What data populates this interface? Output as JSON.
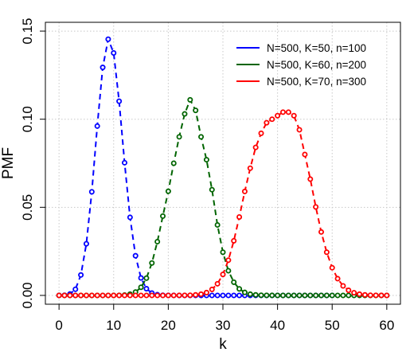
{
  "chart_data": {
    "type": "line",
    "xlabel": "k",
    "ylabel": "PMF",
    "xlim": [
      -2.5,
      62.5
    ],
    "ylim": [
      -0.005,
      0.155
    ],
    "x_ticks": [
      0,
      10,
      20,
      30,
      40,
      50,
      60
    ],
    "y_ticks": [
      0.0,
      0.05,
      0.1,
      0.15
    ],
    "x_tick_labels": [
      "0",
      "10",
      "20",
      "30",
      "40",
      "50",
      "60"
    ],
    "y_tick_labels": [
      "0.00",
      "0.05",
      "0.10",
      "0.15"
    ],
    "grid": true,
    "legend_position": "top-right",
    "markers": "open-circles",
    "line_style": "dashed",
    "series": [
      {
        "name": "N=500, K=50, n=100",
        "color": "#0000FF",
        "x": [
          0,
          1,
          2,
          3,
          4,
          5,
          6,
          7,
          8,
          9,
          10,
          11,
          12,
          13,
          14,
          15,
          16,
          17,
          18,
          19,
          20,
          21,
          22,
          23,
          24,
          25,
          26,
          27,
          28,
          29,
          30,
          31,
          32,
          33,
          34,
          35,
          36,
          37,
          38,
          39,
          40,
          41,
          42,
          43,
          44,
          45,
          46,
          47,
          48,
          49,
          50
        ],
        "values": [
          1e-05,
          0.0001,
          0.0008,
          0.0035,
          0.0116,
          0.0293,
          0.0588,
          0.0961,
          0.1294,
          0.1454,
          0.1376,
          0.1102,
          0.0753,
          0.0443,
          0.0225,
          0.0099,
          0.0038,
          0.0013,
          0.0004,
          0.0001,
          2e-05,
          4e-06,
          0,
          0,
          0,
          0,
          0,
          0,
          0,
          0,
          0,
          0,
          0,
          0,
          0,
          0,
          0,
          0,
          0,
          0,
          0,
          0,
          0,
          0,
          0,
          0,
          0,
          0,
          0,
          0,
          0
        ]
      },
      {
        "name": "N=500, K=60, n=200",
        "color": "#006400",
        "x": [
          0,
          1,
          2,
          3,
          4,
          5,
          6,
          7,
          8,
          9,
          10,
          11,
          12,
          13,
          14,
          15,
          16,
          17,
          18,
          19,
          20,
          21,
          22,
          23,
          24,
          25,
          26,
          27,
          28,
          29,
          30,
          31,
          32,
          33,
          34,
          35,
          36,
          37,
          38,
          39,
          40,
          41,
          42,
          43,
          44,
          45,
          46,
          47,
          48,
          49,
          50,
          51,
          52,
          53,
          54,
          55,
          56,
          57,
          58,
          59,
          60
        ],
        "values": [
          0,
          0,
          0,
          0,
          0,
          0,
          0,
          0,
          0,
          0,
          1e-05,
          5e-05,
          0.0002,
          0.0007,
          0.0019,
          0.0046,
          0.0098,
          0.0184,
          0.0305,
          0.045,
          0.0591,
          0.075,
          0.09,
          0.103,
          0.111,
          0.105,
          0.09,
          0.077,
          0.06,
          0.04,
          0.0245,
          0.014,
          0.0075,
          0.0037,
          0.0017,
          0.0007,
          0.0003,
          0.0001,
          4e-05,
          1e-05,
          0,
          0,
          0,
          0,
          0,
          0,
          0,
          0,
          0,
          0,
          0,
          0,
          0,
          0,
          0,
          0,
          0,
          0,
          0,
          0,
          0
        ]
      },
      {
        "name": "N=500, K=70, n=300",
        "color": "#FF0000",
        "x": [
          0,
          1,
          2,
          3,
          4,
          5,
          6,
          7,
          8,
          9,
          10,
          11,
          12,
          13,
          14,
          15,
          16,
          17,
          18,
          19,
          20,
          21,
          22,
          23,
          24,
          25,
          26,
          27,
          28,
          29,
          30,
          31,
          32,
          33,
          34,
          35,
          36,
          37,
          38,
          39,
          40,
          41,
          42,
          43,
          44,
          45,
          46,
          47,
          48,
          49,
          50,
          51,
          52,
          53,
          54,
          55,
          56,
          57,
          58,
          59,
          60
        ],
        "values": [
          0,
          0,
          0,
          0,
          0,
          0,
          0,
          0,
          0,
          0,
          0,
          0,
          0,
          0,
          0,
          0,
          0,
          0,
          0,
          0,
          0,
          0,
          1e-05,
          3e-05,
          0.0001,
          0.0003,
          0.0007,
          0.0016,
          0.0034,
          0.0066,
          0.0119,
          0.02,
          0.031,
          0.0445,
          0.059,
          0.0722,
          0.084,
          0.092,
          0.098,
          0.1,
          0.102,
          0.104,
          0.104,
          0.102,
          0.094,
          0.08,
          0.066,
          0.0502,
          0.036,
          0.0245,
          0.0157,
          0.0095,
          0.0054,
          0.0029,
          0.0015,
          0.0007,
          0.0003,
          0.0001,
          5e-05,
          2e-05,
          0
        ]
      }
    ]
  }
}
